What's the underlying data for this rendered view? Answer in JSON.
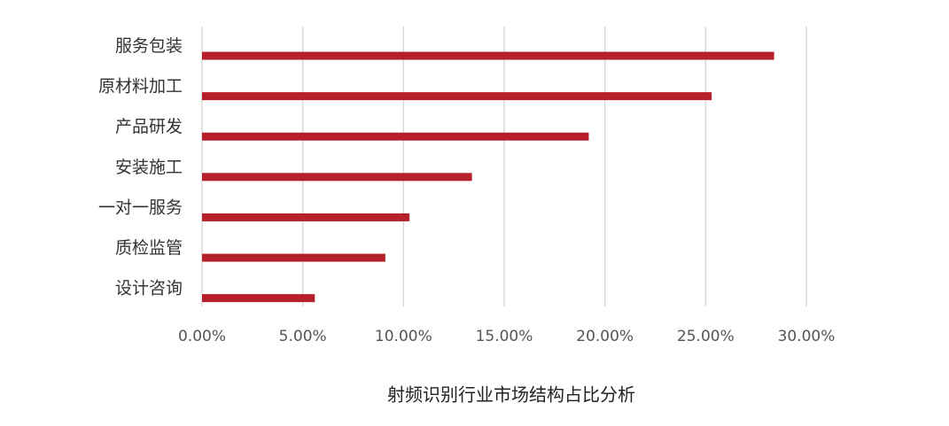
{
  "chart_data": {
    "type": "bar",
    "orientation": "horizontal",
    "title": "射频识别行业市场结构占比分析",
    "categories": [
      "服务包装",
      "原材料加工",
      "产品研发",
      "安装施工",
      "一对一服务",
      "质检监管",
      "设计咨询"
    ],
    "values": [
      28.4,
      25.3,
      19.2,
      13.4,
      10.3,
      9.1,
      5.6
    ],
    "color": "#b5202a",
    "xlim": [
      0,
      30
    ],
    "xticks": [
      {
        "value": 0,
        "label": "0.00%"
      },
      {
        "value": 5,
        "label": "5.00%"
      },
      {
        "value": 10,
        "label": "10.00%"
      },
      {
        "value": 15,
        "label": "15.00%"
      },
      {
        "value": 20,
        "label": "20.00%"
      },
      {
        "value": 25,
        "label": "25.00%"
      },
      {
        "value": 30,
        "label": "30.00%"
      }
    ],
    "grid": true
  }
}
